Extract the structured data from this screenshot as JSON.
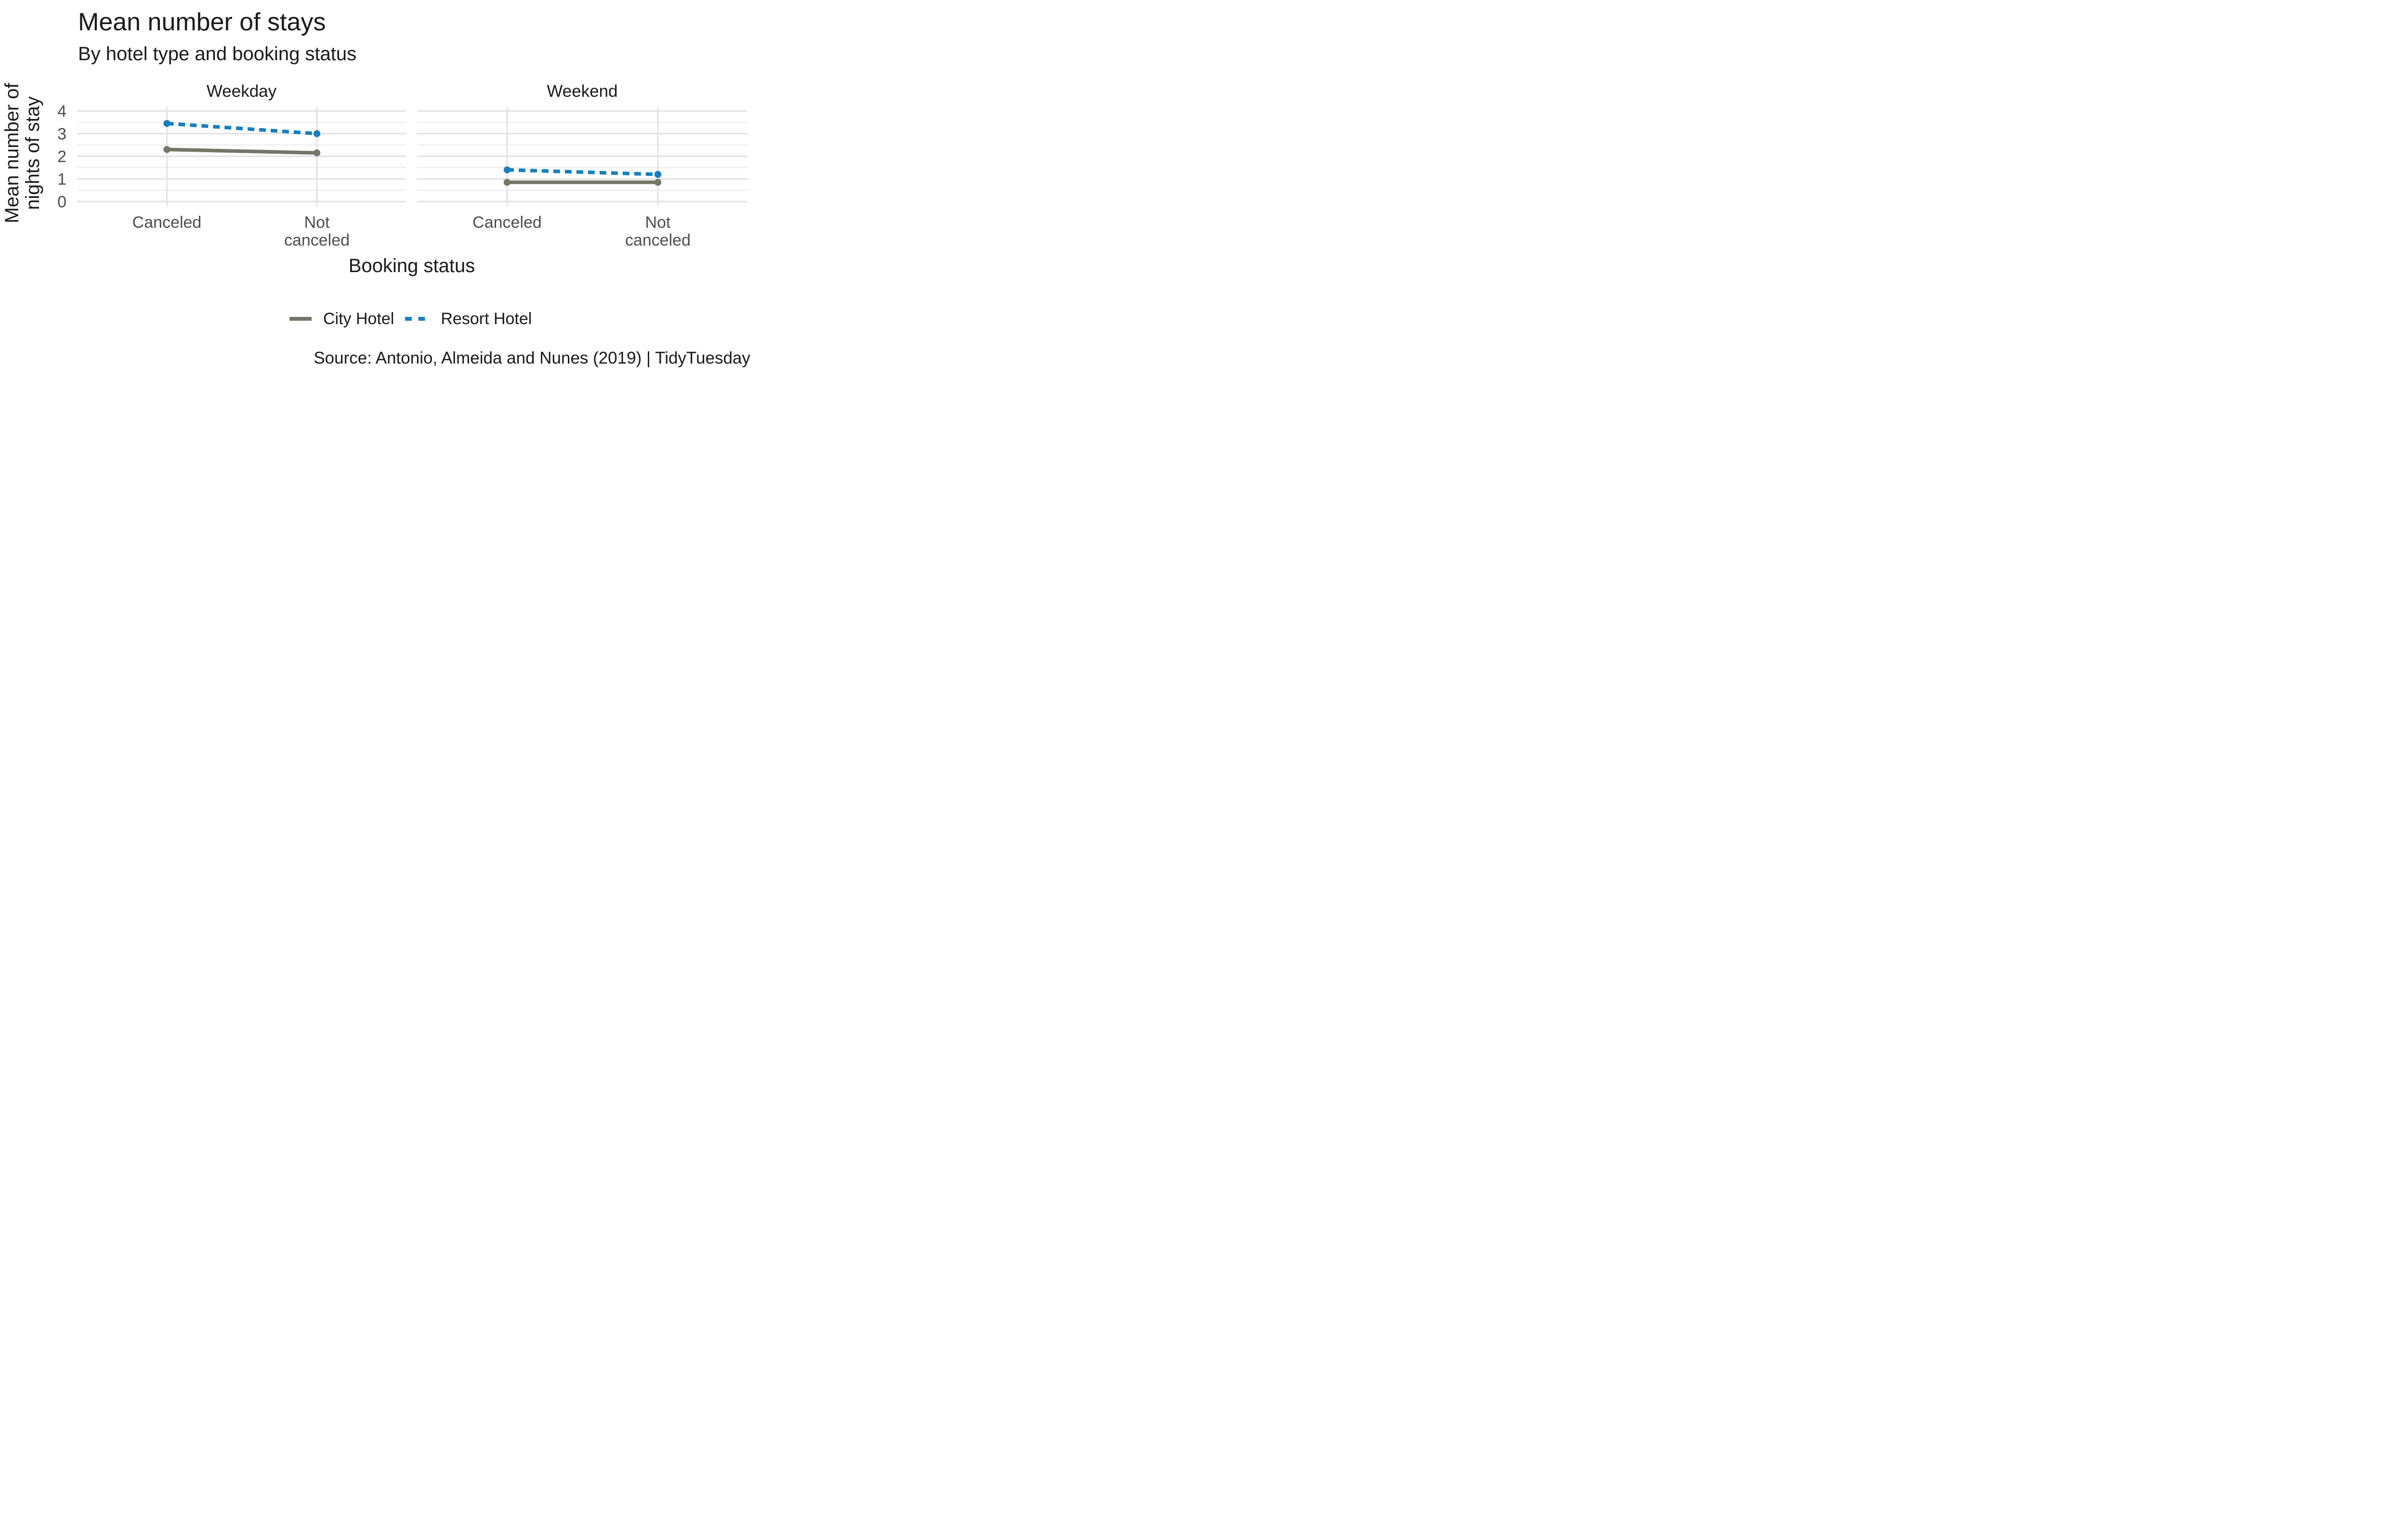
{
  "figure": {
    "title": "Mean number of stays",
    "subtitle": "By hotel type and booking status",
    "caption": "Source: Antonio, Almeida and Nunes (2019) | TidyTuesday"
  },
  "chart_data": {
    "type": "line",
    "title": "Mean number of stays",
    "subtitle": "By hotel type and booking status",
    "caption": "Source: Antonio, Almeida and Nunes (2019) | TidyTuesday",
    "xlabel": "Booking status",
    "ylabel": "Mean number of nights of stay",
    "ylabel_lines": [
      "Mean number of",
      "nights of stay"
    ],
    "categories": [
      "Canceled",
      "Not canceled"
    ],
    "category_label_lines": [
      [
        "Canceled"
      ],
      [
        "Not",
        "canceled"
      ]
    ],
    "y_ticks": [
      0,
      1,
      2,
      3,
      4
    ],
    "ylim": [
      0,
      4
    ],
    "grid": {
      "major_color": "#e3e3e3",
      "minor_color": "#ebebeb",
      "minor_step": 0.5,
      "horizontal": "major+minor",
      "vertical": "major-at-categories"
    },
    "facets": [
      {
        "label": "Weekday",
        "series": [
          {
            "name": "City Hotel",
            "values": [
              2.3,
              2.15
            ]
          },
          {
            "name": "Resort Hotel",
            "values": [
              3.45,
              3.0
            ]
          }
        ]
      },
      {
        "label": "Weekend",
        "series": [
          {
            "name": "City Hotel",
            "values": [
              0.85,
              0.85
            ]
          },
          {
            "name": "Resort Hotel",
            "values": [
              1.4,
              1.2
            ]
          }
        ]
      }
    ],
    "legend": [
      {
        "label": "City Hotel",
        "color": "#767667",
        "style": "solid"
      },
      {
        "label": "Resort Hotel",
        "color": "#1780be",
        "style": "dashed"
      }
    ],
    "legend_position": "bottom",
    "colors": {
      "tick_label": "#4d4d4d",
      "text": "#1a1a1a",
      "background": "#ffffff"
    }
  }
}
